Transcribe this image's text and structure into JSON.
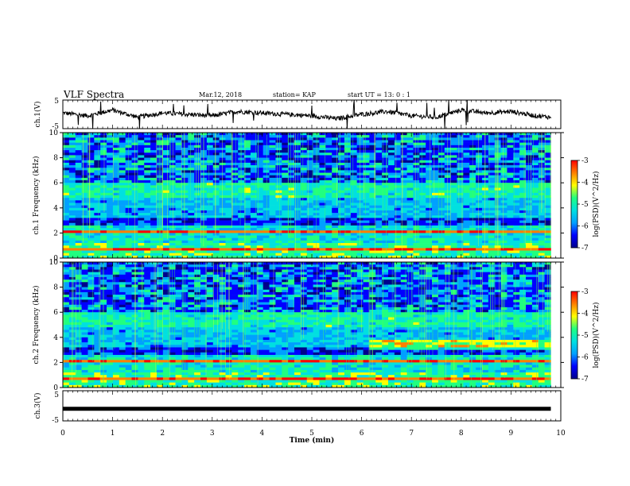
{
  "header": {
    "title": "VLF Spectra",
    "date": "Mar.12, 2018",
    "station": "station= KAP",
    "start": "start UT = 13: 0 : 1"
  },
  "colors": {
    "spectrogram_scale": [
      "#00008b",
      "#0000ff",
      "#00a0ff",
      "#00e0e0",
      "#20ff80",
      "#ffff00",
      "#ff8000",
      "#ff0000"
    ],
    "trace": "#000000"
  },
  "chart_data": [
    {
      "type": "line",
      "name": "ch1-waveform",
      "ylabel": "ch.1(V)",
      "ylim": [
        -5,
        5
      ],
      "yticks": [
        "5",
        "-5"
      ],
      "x": [
        0,
        0.5,
        1,
        1.5,
        2,
        2.5,
        3,
        3.5,
        4,
        4.5,
        5,
        5.5,
        6,
        6.5,
        7,
        7.5,
        8,
        8.5,
        9,
        9.5,
        9.8
      ],
      "y": [
        0.5,
        -0.5,
        1.5,
        -1.0,
        0.5,
        0.0,
        -0.5,
        1.0,
        0.5,
        0.0,
        -0.5,
        -1.5,
        0.0,
        1.0,
        -0.5,
        -1.0,
        1.5,
        0.5,
        1.0,
        -0.5,
        -1.0
      ]
    },
    {
      "type": "heatmap",
      "name": "ch1-spectrogram",
      "ylabel": "ch.1 Frequency (kHz)",
      "ylim": [
        0,
        10
      ],
      "yticks": [
        "0",
        "2",
        "4",
        "6",
        "8",
        "10"
      ],
      "xlim": [
        0,
        10
      ],
      "colorbar": {
        "label": "log(PSD)(V^2/Hz)",
        "range": [
          -7,
          -3
        ],
        "ticks": [
          "-3",
          "-4",
          "-5",
          "-6",
          "-7"
        ]
      }
    },
    {
      "type": "heatmap",
      "name": "ch2-spectrogram",
      "ylabel": "ch.2 Frequency (kHz)",
      "ylim": [
        0,
        10
      ],
      "yticks": [
        "0",
        "2",
        "4",
        "6",
        "8",
        "10"
      ],
      "xlim": [
        0,
        10
      ],
      "colorbar": {
        "label": "log(PSD)(V^2/Hz)",
        "range": [
          -7,
          -3
        ],
        "ticks": [
          "-3",
          "-4",
          "-5",
          "-6",
          "-7"
        ]
      }
    },
    {
      "type": "line",
      "name": "ch3-waveform",
      "ylabel": "ch.3(V)",
      "ylim": [
        -5,
        5
      ],
      "yticks": [
        "5",
        "-5"
      ],
      "x": [
        0,
        9.8
      ],
      "y": [
        -1,
        -1
      ]
    }
  ],
  "x_axis": {
    "label": "Time (min)",
    "ticks": [
      "0",
      "1",
      "2",
      "3",
      "4",
      "5",
      "6",
      "7",
      "8",
      "9",
      "10"
    ],
    "xlim": [
      0,
      10
    ]
  }
}
